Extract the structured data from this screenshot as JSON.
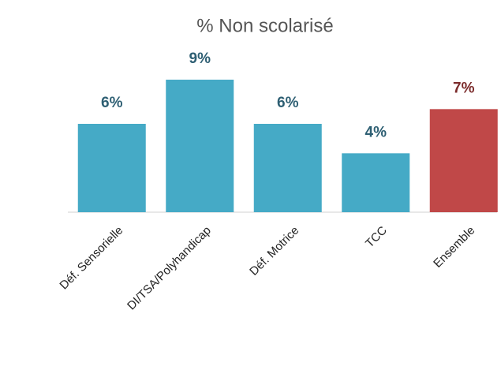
{
  "chart_data": {
    "type": "bar",
    "title": "% Non scolarisé",
    "categories": [
      "Déf. Sensorielle",
      "DI/TSA/Polyhandicap",
      "Déf. Motrice",
      "TCC",
      "Ensemble"
    ],
    "values": [
      6,
      9,
      6,
      4,
      7
    ],
    "value_labels": [
      "6%",
      "9%",
      "6%",
      "4%",
      "7%"
    ],
    "colors": [
      "#45aac6",
      "#45aac6",
      "#45aac6",
      "#45aac6",
      "#c04848"
    ],
    "value_label_colors": [
      "#2e5f73",
      "#2e5f73",
      "#2e5f73",
      "#2e5f73",
      "#7b2b2b"
    ]
  }
}
